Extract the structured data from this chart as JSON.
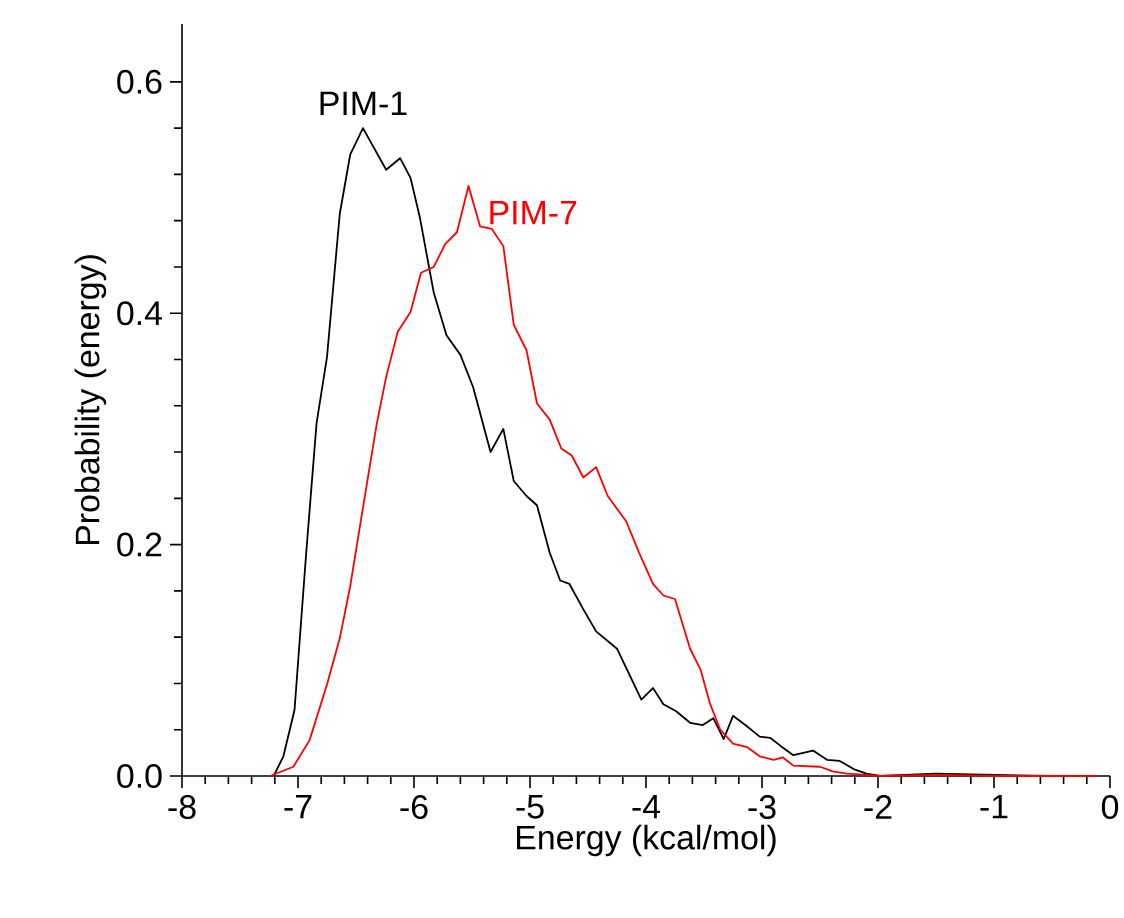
{
  "chart_data": {
    "type": "line",
    "xlabel": "Energy (kcal/mol)",
    "ylabel": "Probability (energy)",
    "xlim": [
      -8,
      0
    ],
    "ylim": [
      0,
      0.65
    ],
    "xticks": [
      -8,
      -7,
      -6,
      -5,
      -4,
      -3,
      -2,
      -1,
      0
    ],
    "yticks": [
      {
        "value": 0,
        "label": "0.0"
      },
      {
        "value": 0.2,
        "label": "0.2"
      },
      {
        "value": 0.4,
        "label": "0.4"
      },
      {
        "value": 0.6,
        "label": "0.6"
      }
    ],
    "grid": false,
    "legend": false,
    "marker": "none",
    "line_style": "solid",
    "series": [
      {
        "name": "PIM-1",
        "color": "#000000",
        "x": [
          -7.21,
          -7.126,
          -7.03,
          -6.93,
          -6.84,
          -6.75,
          -6.64,
          -6.55,
          -6.44,
          -6.24,
          -6.12,
          -6.03,
          -5.95,
          -5.83,
          -5.72,
          -5.6,
          -5.49,
          -5.34,
          -5.23,
          -5.14,
          -5.03,
          -4.94,
          -4.83,
          -4.74,
          -4.66,
          -4.54,
          -4.43,
          -4.25,
          -4.14,
          -4.04,
          -3.94,
          -3.85,
          -3.74,
          -3.62,
          -3.51,
          -3.42,
          -3.33,
          -3.25,
          -3.13,
          -3.02,
          -2.93,
          -2.84,
          -2.73,
          -2.56,
          -2.44,
          -2.33,
          -2.21,
          -2.1,
          -1.98,
          -1.5,
          -1.0,
          -0.5,
          -0.1
        ],
        "values": [
          0,
          0.017,
          0.057,
          0.192,
          0.305,
          0.362,
          0.486,
          0.537,
          0.56,
          0.524,
          0.534,
          0.517,
          0.483,
          0.418,
          0.381,
          0.364,
          0.336,
          0.28,
          0.3,
          0.255,
          0.242,
          0.234,
          0.193,
          0.169,
          0.166,
          0.144,
          0.125,
          0.11,
          0.087,
          0.066,
          0.076,
          0.062,
          0.056,
          0.046,
          0.044,
          0.05,
          0.032,
          0.052,
          0.043,
          0.034,
          0.033,
          0.026,
          0.018,
          0.022,
          0.014,
          0.013,
          0.006,
          0.002,
          0,
          0.002,
          0.001,
          0,
          0
        ]
      },
      {
        "name": "PIM-7",
        "color": "#ff0000",
        "x": [
          -7.24,
          -7.04,
          -6.9,
          -6.75,
          -6.64,
          -6.55,
          -6.44,
          -6.32,
          -6.24,
          -6.14,
          -6.03,
          -5.94,
          -5.83,
          -5.73,
          -5.63,
          -5.53,
          -5.43,
          -5.33,
          -5.23,
          -5.14,
          -5.03,
          -4.94,
          -4.83,
          -4.73,
          -4.64,
          -4.54,
          -4.43,
          -4.33,
          -4.17,
          -4.06,
          -3.94,
          -3.85,
          -3.75,
          -3.62,
          -3.53,
          -3.45,
          -3.36,
          -3.25,
          -3.13,
          -3.02,
          -2.9,
          -2.82,
          -2.73,
          -2.5,
          -2.39,
          -2.27,
          -2.1,
          -1.98,
          -1.5,
          -1.0,
          -0.5,
          -0.1
        ],
        "values": [
          0,
          0.008,
          0.031,
          0.079,
          0.119,
          0.164,
          0.232,
          0.305,
          0.345,
          0.384,
          0.401,
          0.435,
          0.44,
          0.46,
          0.47,
          0.51,
          0.475,
          0.473,
          0.458,
          0.39,
          0.368,
          0.322,
          0.308,
          0.283,
          0.277,
          0.258,
          0.267,
          0.242,
          0.22,
          0.193,
          0.166,
          0.156,
          0.153,
          0.11,
          0.092,
          0.063,
          0.04,
          0.028,
          0.025,
          0.017,
          0.014,
          0.016,
          0.009,
          0.008,
          0.004,
          0.002,
          0.001,
          0,
          0.001,
          0,
          0,
          0
        ]
      }
    ]
  }
}
